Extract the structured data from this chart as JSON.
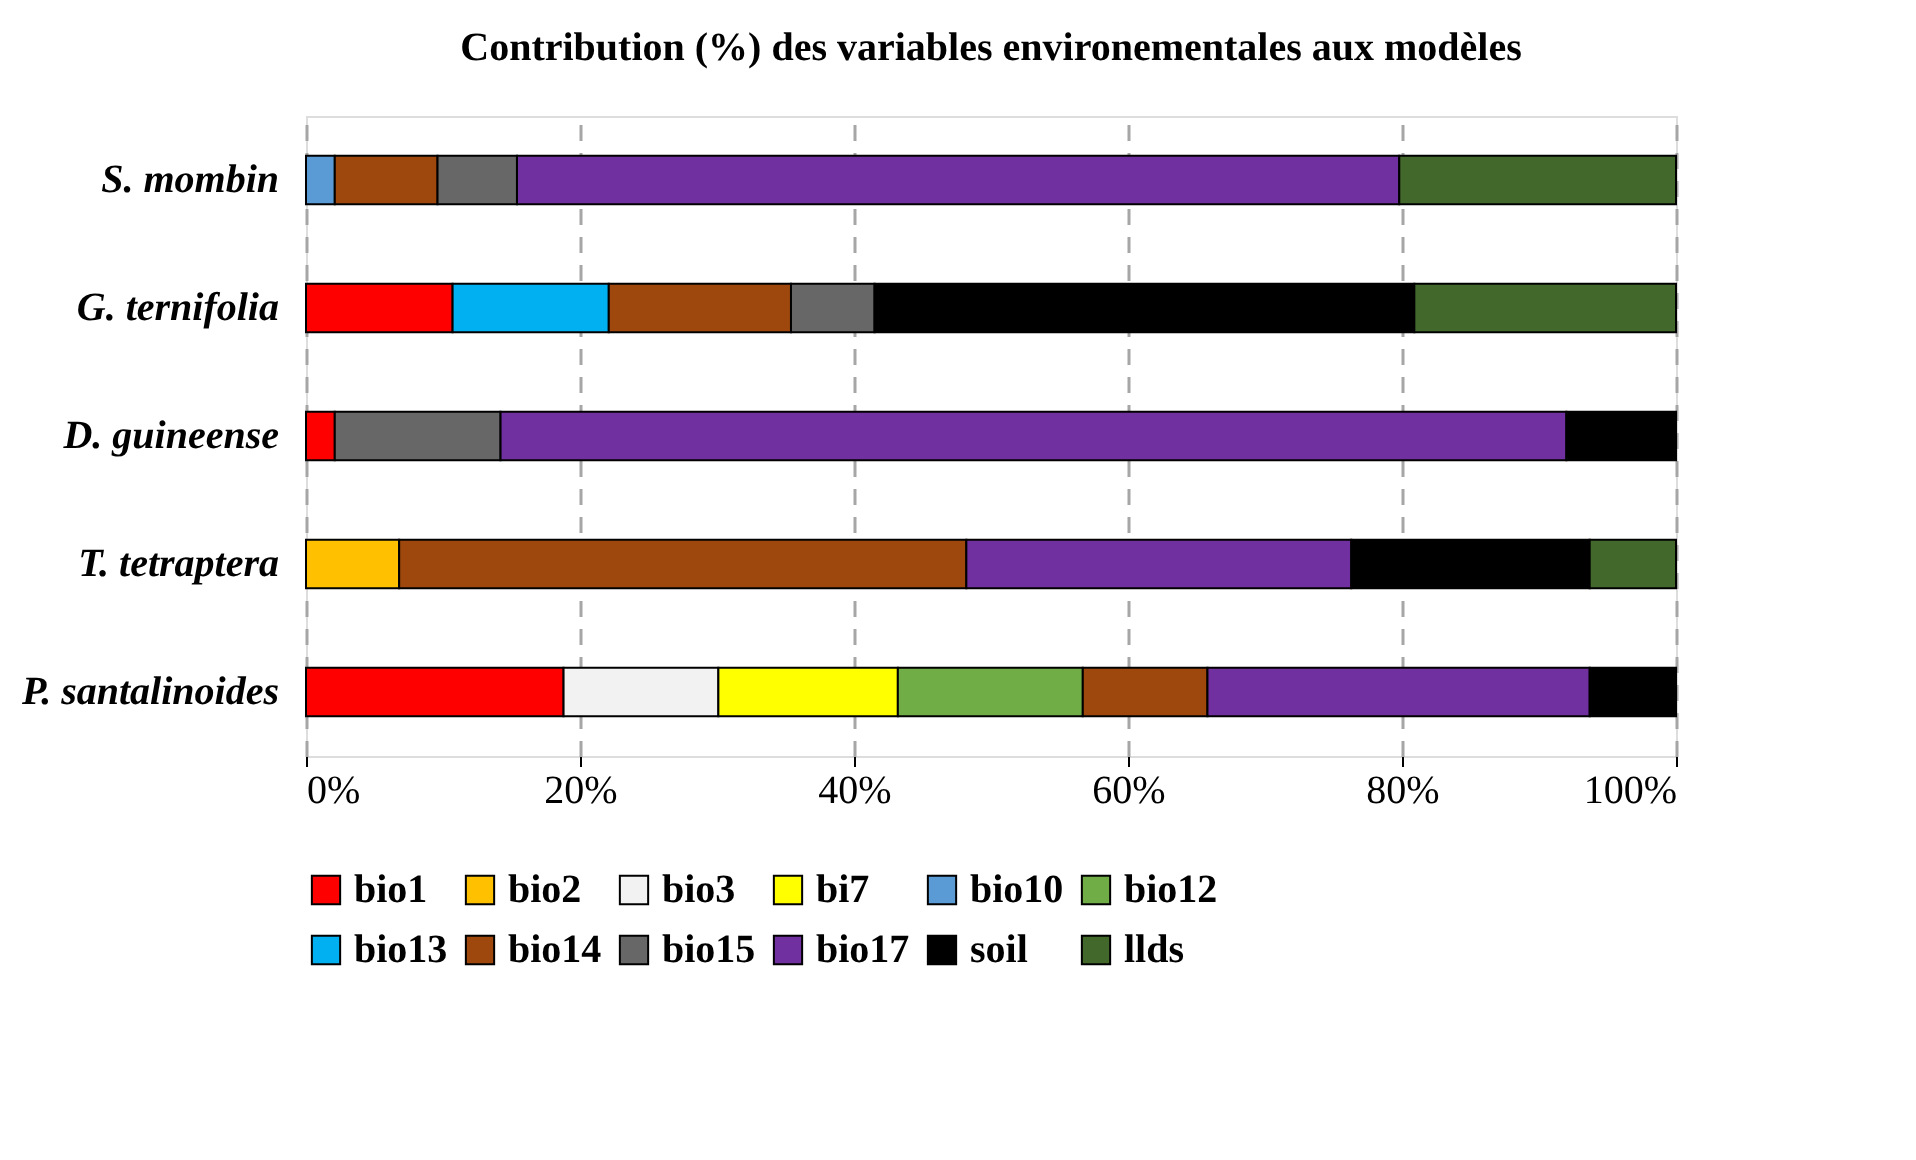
{
  "chart_data": {
    "type": "bar",
    "orientation": "horizontal",
    "stacked": true,
    "title": "Contribution  (%) des variables environementales aux modèles",
    "categories": [
      "S. mombin",
      "G. ternifolia",
      "D. guineense",
      "T. tetraptera",
      "P. santalinoides"
    ],
    "series": [
      {
        "name": "bio1",
        "color": "#ff0000",
        "values": [
          null,
          10.7,
          2.1,
          null,
          18.8
        ]
      },
      {
        "name": "bio2",
        "color": "#ffc000",
        "values": [
          null,
          null,
          null,
          6.8,
          null
        ]
      },
      {
        "name": "bio3",
        "color": "#f2f2f2",
        "values": [
          null,
          null,
          null,
          null,
          11.3
        ]
      },
      {
        "name": "bi7",
        "color": "#ffff00",
        "values": [
          null,
          null,
          null,
          null,
          13.1
        ]
      },
      {
        "name": "bio10",
        "color": "#5b9bd5",
        "values": [
          2.1,
          null,
          null,
          null,
          null
        ]
      },
      {
        "name": "bio12",
        "color": "#70ad47",
        "values": [
          null,
          null,
          null,
          null,
          13.5
        ]
      },
      {
        "name": "bio13",
        "color": "#00b0f0",
        "values": [
          null,
          11.4,
          null,
          null,
          null
        ]
      },
      {
        "name": "bio14",
        "color": "#9e480e",
        "values": [
          7.5,
          13.3,
          null,
          41.4,
          9.1
        ]
      },
      {
        "name": "bio15",
        "color": "#676767",
        "values": [
          5.8,
          6.1,
          12.1,
          null,
          null
        ]
      },
      {
        "name": "bio17",
        "color": "#7030a0",
        "values": [
          64.4,
          null,
          77.8,
          28.1,
          27.9
        ]
      },
      {
        "name": "soil",
        "color": "#000000",
        "values": [
          null,
          39.4,
          8.0,
          17.4,
          6.3
        ]
      },
      {
        "name": "llds",
        "color": "#43682b",
        "values": [
          20.2,
          19.1,
          null,
          6.3,
          null
        ]
      }
    ],
    "xlim": [
      0,
      100
    ],
    "xticks": [
      {
        "value": 0,
        "label": "0%"
      },
      {
        "value": 20,
        "label": "20%"
      },
      {
        "value": 40,
        "label": "40%"
      },
      {
        "value": 60,
        "label": "60%"
      },
      {
        "value": 80,
        "label": "80%"
      },
      {
        "value": 100,
        "label": "100%"
      }
    ],
    "grid": "x",
    "legend": "bottom"
  }
}
